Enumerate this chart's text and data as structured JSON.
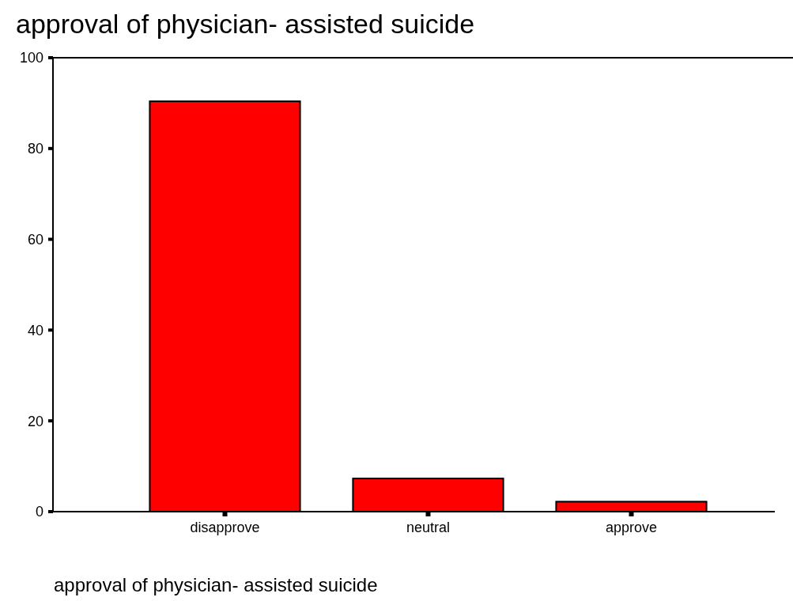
{
  "chart_data": {
    "type": "bar",
    "title": "approval of  physician- assisted suicide",
    "xlabel": "approval of  physician- assisted suicide",
    "categories": [
      "disapprove",
      "neutral",
      "approve"
    ],
    "values": [
      90.4,
      7.3,
      2.2
    ],
    "color": "#ff0000",
    "ylim": [
      0,
      100
    ],
    "yticks": [
      0,
      20,
      40,
      60,
      80,
      100
    ],
    "grid": false
  }
}
